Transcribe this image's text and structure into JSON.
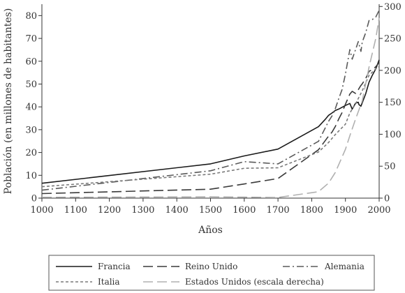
{
  "chart_data": {
    "type": "line",
    "xlabel": "Años",
    "ylabel": "Población (en millones de habitantes)",
    "xlim": [
      1000,
      2000
    ],
    "ylim": [
      0,
      85
    ],
    "y2lim": [
      0,
      303.6
    ],
    "x_ticks": [
      1000,
      1100,
      1200,
      1300,
      1400,
      1500,
      1600,
      1700,
      1800,
      1900,
      2000
    ],
    "y_ticks": [
      0,
      10,
      20,
      30,
      40,
      50,
      60,
      70,
      80
    ],
    "y2_ticks": [
      0,
      50,
      100,
      150,
      200,
      250,
      300
    ],
    "grid": false,
    "legend_placement": "bottom",
    "series": [
      {
        "name": "Francia",
        "axis": "left",
        "color": "#1a1a1a",
        "dash": "solid",
        "x": [
          1000,
          1500,
          1600,
          1700,
          1820,
          1840,
          1850,
          1860,
          1870,
          1880,
          1900,
          1913,
          1920,
          1930,
          1938,
          1940,
          1946,
          1950,
          1960,
          1970,
          1980,
          1990,
          2000
        ],
        "y": [
          6.5,
          15,
          18.5,
          21.5,
          31.3,
          34.5,
          36.3,
          37.3,
          38.4,
          39.0,
          40.6,
          41.5,
          39.0,
          41.6,
          42.0,
          41.0,
          40.3,
          41.8,
          45.7,
          50.8,
          53.9,
          56.7,
          60.6
        ]
      },
      {
        "name": "Reino Unido",
        "axis": "left",
        "color": "#3a3a3a",
        "dash": "longdash",
        "x": [
          1000,
          1500,
          1600,
          1700,
          1820,
          1850,
          1860,
          1870,
          1880,
          1890,
          1900,
          1913,
          1920,
          1930,
          1938,
          1945,
          1950,
          1960,
          1970,
          1980,
          1990,
          2000
        ],
        "y": [
          2.0,
          3.9,
          6.2,
          8.6,
          21.2,
          27.2,
          28.9,
          31.4,
          34.6,
          37.5,
          41.2,
          45.6,
          46.8,
          45.9,
          47.5,
          49.2,
          50.1,
          52.4,
          55.6,
          56.3,
          57.6,
          59.5
        ]
      },
      {
        "name": "Alemania",
        "axis": "left",
        "color": "#5a5a5a",
        "dash": "dashdot",
        "x": [
          1000,
          1500,
          1600,
          1700,
          1820,
          1850,
          1860,
          1870,
          1880,
          1890,
          1900,
          1913,
          1920,
          1930,
          1938,
          1946,
          1950,
          1960,
          1970,
          1980,
          1990,
          2000
        ],
        "y": [
          3.5,
          12,
          16,
          15,
          24.9,
          33.7,
          36.0,
          39.2,
          43.5,
          47.6,
          54.4,
          65.1,
          60.9,
          65.1,
          68.6,
          64.3,
          68.4,
          72.5,
          77.8,
          78.3,
          79.4,
          82.3
        ]
      },
      {
        "name": "Italia",
        "axis": "left",
        "color": "#7a7a7a",
        "dash": "dotted",
        "x": [
          1000,
          1500,
          1600,
          1700,
          1820,
          1850,
          1870,
          1900,
          1913,
          1930,
          1950,
          1970,
          1990,
          2000
        ],
        "y": [
          5.0,
          10.5,
          13.1,
          13.3,
          20.2,
          24.4,
          27.9,
          32.4,
          37.3,
          41.3,
          47.1,
          53.8,
          56.7,
          57.6
        ]
      },
      {
        "name": "Estados Unidos (escala derecha)",
        "axis": "right",
        "color": "#b0b0b0",
        "dash": "longdash",
        "x": [
          1000,
          1500,
          1600,
          1700,
          1820,
          1850,
          1870,
          1900,
          1913,
          1930,
          1950,
          1970,
          1990,
          2000
        ],
        "y": [
          1.3,
          2.0,
          1.5,
          1.0,
          10.0,
          23.6,
          40.2,
          76.4,
          97.6,
          123.7,
          152.3,
          205.1,
          250.1,
          282.2
        ]
      }
    ]
  }
}
